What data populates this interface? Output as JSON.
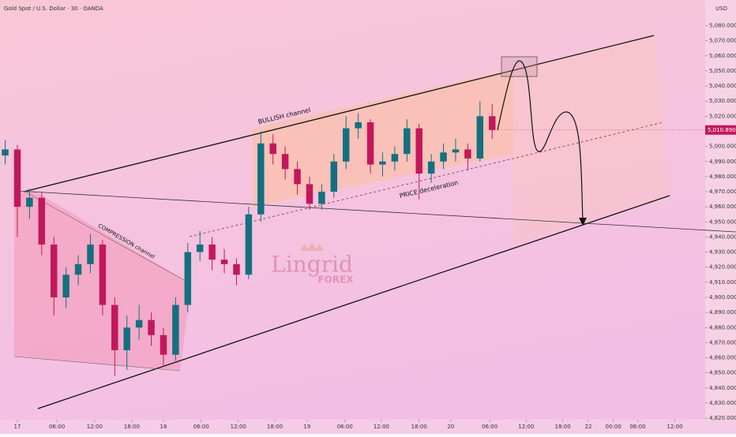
{
  "chart_data": {
    "type": "candlestick",
    "title": "Gold Spot / U.S. Dollar · 30 · OANDA",
    "currency": "USD",
    "x": [
      -2,
      0,
      2,
      4,
      6,
      8,
      10,
      12,
      14,
      16,
      18,
      20,
      22,
      24,
      26,
      28,
      30,
      32,
      34,
      36,
      38,
      40,
      42,
      44,
      46,
      48,
      50,
      52,
      54,
      56,
      58,
      60,
      62,
      64,
      66,
      68,
      70,
      72,
      74,
      76,
      78
    ],
    "open": [
      4994,
      4998,
      4960,
      4966,
      4935,
      4900,
      4915,
      4922,
      4935,
      4895,
      4865,
      4880,
      4885,
      4875,
      4862,
      4895,
      4930,
      4935,
      4925,
      4922,
      4915,
      4955,
      5002,
      4995,
      4985,
      4975,
      4962,
      4970,
      4990,
      5012,
      5016,
      4988,
      4990,
      4995,
      5012,
      4982,
      4990,
      4996,
      4998,
      4992,
      5020
    ],
    "high": [
      5004,
      5001,
      4972,
      4970,
      4940,
      4920,
      4928,
      4942,
      4938,
      4900,
      4888,
      4895,
      4890,
      4880,
      4900,
      4936,
      4944,
      4940,
      4932,
      4926,
      4960,
      5010,
      5008,
      5000,
      4990,
      4980,
      4975,
      4995,
      5020,
      5022,
      5018,
      4996,
      5000,
      5018,
      5015,
      4995,
      5002,
      5005,
      5002,
      5030,
      5028
    ],
    "low": [
      4988,
      4940,
      4952,
      4928,
      4888,
      4893,
      4908,
      4916,
      4888,
      4848,
      4852,
      4872,
      4868,
      4854,
      4858,
      4890,
      4924,
      4918,
      4916,
      4908,
      4912,
      4950,
      4988,
      4978,
      4968,
      4958,
      4958,
      4966,
      4985,
      5005,
      4982,
      4980,
      4984,
      4990,
      4965,
      4976,
      4985,
      4990,
      4984,
      4990,
      5005
    ],
    "close": [
      4998,
      4960,
      4966,
      4935,
      4900,
      4915,
      4922,
      4935,
      4895,
      4865,
      4880,
      4885,
      4875,
      4862,
      4895,
      4930,
      4935,
      4925,
      4922,
      4915,
      4955,
      5002,
      4995,
      4985,
      4975,
      4962,
      4970,
      4990,
      5012,
      5016,
      4988,
      4990,
      4995,
      5012,
      4982,
      4990,
      4996,
      4998,
      4992,
      5020,
      5010.89
    ],
    "up_color": "#14707f",
    "down_color": "#c2185b",
    "last_price": 5010.89,
    "last_price_label": "5,010.890",
    "xlim": [
      -2.85,
      113
    ],
    "ylim": [
      4819,
      5097
    ],
    "xticks": [
      {
        "value": 0,
        "label": "17"
      },
      {
        "value": 6.5,
        "label": "06:00"
      },
      {
        "value": 12.7,
        "label": "12:00"
      },
      {
        "value": 18.8,
        "label": "18:00"
      },
      {
        "value": 24,
        "label": "18"
      },
      {
        "value": 30.2,
        "label": "06:00"
      },
      {
        "value": 36.3,
        "label": "12:00"
      },
      {
        "value": 42.3,
        "label": "18:00"
      },
      {
        "value": 47.6,
        "label": "19"
      },
      {
        "value": 53.8,
        "label": "06:00"
      },
      {
        "value": 59.8,
        "label": "12:00"
      },
      {
        "value": 66,
        "label": "18:00"
      },
      {
        "value": 71.2,
        "label": "20"
      },
      {
        "value": 77.6,
        "label": "06:00"
      },
      {
        "value": 83.6,
        "label": "12:00"
      },
      {
        "value": 89.6,
        "label": "18:00"
      },
      {
        "value": 93.8,
        "label": "22"
      },
      {
        "value": 97.9,
        "label": "00:00"
      },
      {
        "value": 101.9,
        "label": "06:00"
      },
      {
        "value": 108,
        "label": "12:00"
      }
    ],
    "yticks": [
      {
        "value": 4820,
        "label": "4,820.000"
      },
      {
        "value": 4830,
        "label": "4,830.000"
      },
      {
        "value": 4840,
        "label": "4,840.000"
      },
      {
        "value": 4850,
        "label": "4,850.000"
      },
      {
        "value": 4860,
        "label": "4,860.000"
      },
      {
        "value": 4870,
        "label": "4,870.000"
      },
      {
        "value": 4880,
        "label": "4,880.000"
      },
      {
        "value": 4890,
        "label": "4,890.000"
      },
      {
        "value": 4900,
        "label": "4,900.000"
      },
      {
        "value": 4910,
        "label": "4,910.000"
      },
      {
        "value": 4920,
        "label": "4,920.000"
      },
      {
        "value": 4930,
        "label": "4,930.000"
      },
      {
        "value": 4940,
        "label": "4,940.000"
      },
      {
        "value": 4950,
        "label": "4,950.000"
      },
      {
        "value": 4960,
        "label": "4,960.000"
      },
      {
        "value": 4970,
        "label": "4,970.000"
      },
      {
        "value": 4980,
        "label": "4,980.000"
      },
      {
        "value": 4990,
        "label": "4,990.000"
      },
      {
        "value": 5000,
        "label": "5,000.000"
      },
      {
        "value": 5010,
        "label": "5,010.000"
      },
      {
        "value": 5020,
        "label": "5,020.000"
      },
      {
        "value": 5030,
        "label": "5,030.000"
      },
      {
        "value": 5040,
        "label": "5,040.000"
      },
      {
        "value": 5050,
        "label": "5,050.000"
      },
      {
        "value": 5060,
        "label": "5,060.000"
      },
      {
        "value": 5070,
        "label": "5,070.000"
      },
      {
        "value": 5080,
        "label": "5,080.000"
      }
    ],
    "annotations": {
      "bullish": "BULLISH channel",
      "compression": "COMPRESSION channel",
      "deceleration": "PRICE deceleration"
    },
    "watermark": {
      "brand": "Lingrid",
      "sub": "FOREX"
    }
  }
}
